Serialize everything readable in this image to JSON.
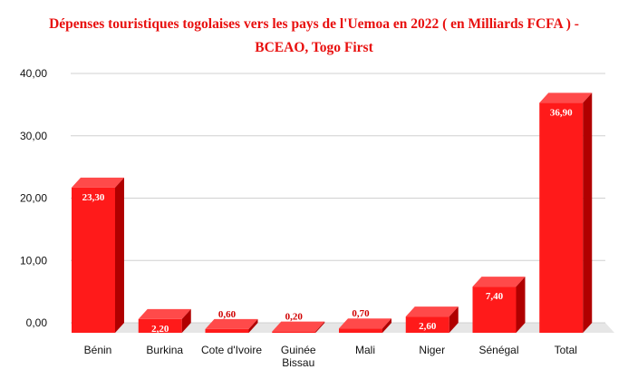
{
  "chart_data": {
    "type": "bar",
    "title_line1": "Dépenses touristiques togolaises vers les pays de l'Uemoa en 2022 ( en Milliards FCFA ) -",
    "title_line2": "BCEAO, Togo First",
    "categories": [
      "Bénin",
      "Burkina",
      "Cote d'Ivoire",
      "Guinée Bissau",
      "Mali",
      "Niger",
      "Sénégal",
      "Total"
    ],
    "category_lines": [
      [
        "Bénin"
      ],
      [
        "Burkina"
      ],
      [
        "Cote d'Ivoire"
      ],
      [
        "Guinée",
        "Bissau"
      ],
      [
        "Mali"
      ],
      [
        "Niger"
      ],
      [
        "Sénégal"
      ],
      [
        "Total"
      ]
    ],
    "values": [
      23.3,
      2.2,
      0.6,
      0.2,
      0.7,
      2.6,
      7.4,
      36.9
    ],
    "data_labels": [
      "23,30",
      "2,20",
      "0,60",
      "0,20",
      "0,70",
      "2,60",
      "7,40",
      "36,90"
    ],
    "y_ticks": [
      "0,00",
      "10,00",
      "20,00",
      "30,00",
      "40,00"
    ],
    "ylim": [
      0,
      40
    ],
    "grid": true,
    "legend": "none",
    "colors": {
      "title": "#e8100f",
      "bar_front": "#ff1a1a",
      "bar_top": "#ff4a4a",
      "bar_side": "#b00000",
      "label_inside": "#ffffff",
      "label_outside": "#d00000",
      "grid": "#d0d0d0",
      "floor": "#e6e6e6"
    }
  }
}
